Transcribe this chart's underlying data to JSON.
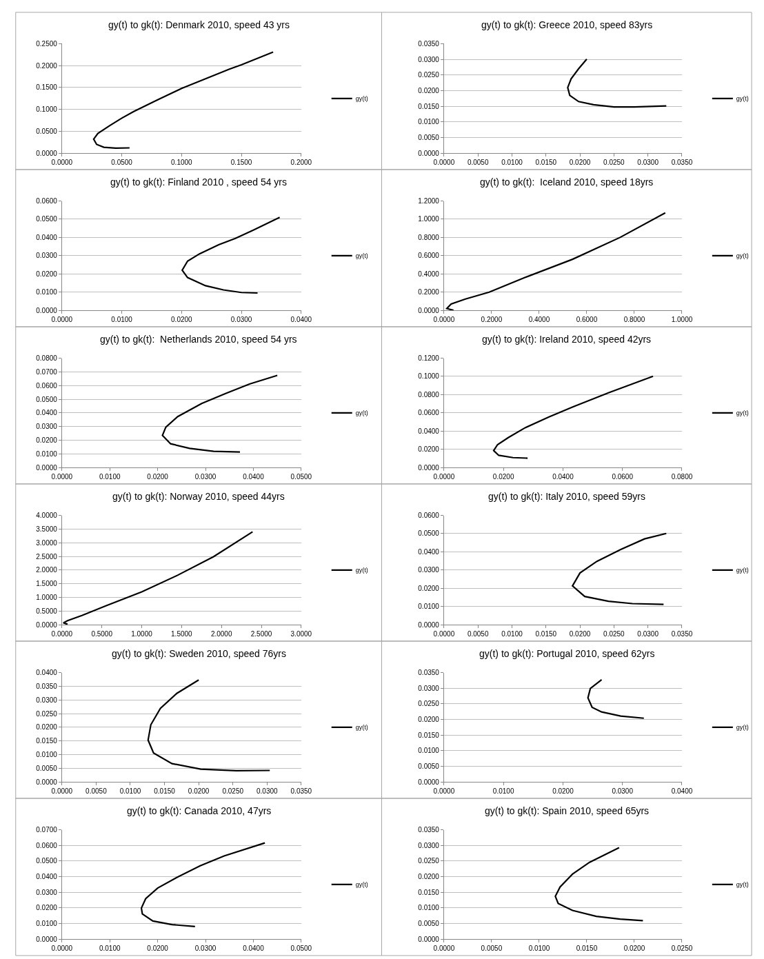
{
  "chart_data": [
    {
      "type": "line",
      "title": "gy(t) to gk(t): Denmark 2010, speed 43 yrs",
      "grid": "y",
      "legend": "right",
      "x": [
        0.0565,
        0.045,
        0.035,
        0.029,
        0.0265,
        0.03,
        0.04,
        0.05,
        0.06,
        0.08,
        0.1,
        0.12,
        0.14,
        0.15,
        0.1765
      ],
      "series": [
        {
          "name": "gy(t)",
          "color": "#000000",
          "values": [
            0.012,
            0.0115,
            0.0135,
            0.02,
            0.032,
            0.045,
            0.063,
            0.08,
            0.095,
            0.122,
            0.148,
            0.17,
            0.192,
            0.202,
            0.231
          ]
        }
      ],
      "xlim": [
        0,
        0.2
      ],
      "xticks": [
        {
          "value": 0,
          "label": "0.0000"
        },
        {
          "value": 0.05,
          "label": "0.0500"
        },
        {
          "value": 0.1,
          "label": "0.1000"
        },
        {
          "value": 0.15,
          "label": "0.1500"
        },
        {
          "value": 0.2,
          "label": "0.2000"
        }
      ],
      "ylim": [
        0,
        0.25
      ],
      "yticks": [
        {
          "value": 0,
          "label": "0.0000"
        },
        {
          "value": 0.05,
          "label": "0.0500"
        },
        {
          "value": 0.1,
          "label": "0.1000"
        },
        {
          "value": 0.15,
          "label": "0.1500"
        },
        {
          "value": 0.2,
          "label": "0.2000"
        },
        {
          "value": 0.25,
          "label": "0.2500"
        }
      ]
    },
    {
      "type": "line",
      "title": "gy(t) to gk(t): Greece 2010, speed 83yrs",
      "grid": "y",
      "legend": "right",
      "x": [
        0.0327,
        0.028,
        0.025,
        0.022,
        0.0198,
        0.0185,
        0.0182,
        0.0187,
        0.0198,
        0.021
      ],
      "series": [
        {
          "name": "gy(t)",
          "color": "#000000",
          "values": [
            0.0151,
            0.0148,
            0.0148,
            0.0155,
            0.0165,
            0.0185,
            0.021,
            0.0238,
            0.027,
            0.0301
          ]
        }
      ],
      "xlim": [
        0,
        0.035
      ],
      "xticks": [
        {
          "value": 0,
          "label": "0.0000"
        },
        {
          "value": 0.005,
          "label": "0.0050"
        },
        {
          "value": 0.01,
          "label": "0.0100"
        },
        {
          "value": 0.015,
          "label": "0.0150"
        },
        {
          "value": 0.02,
          "label": "0.0200"
        },
        {
          "value": 0.025,
          "label": "0.0250"
        },
        {
          "value": 0.03,
          "label": "0.0300"
        },
        {
          "value": 0.035,
          "label": "0.0350"
        }
      ],
      "ylim": [
        0,
        0.035
      ],
      "yticks": [
        {
          "value": 0,
          "label": "0.0000"
        },
        {
          "value": 0.005,
          "label": "0.0050"
        },
        {
          "value": 0.01,
          "label": "0.0100"
        },
        {
          "value": 0.015,
          "label": "0.0150"
        },
        {
          "value": 0.02,
          "label": "0.0200"
        },
        {
          "value": 0.025,
          "label": "0.0250"
        },
        {
          "value": 0.03,
          "label": "0.0300"
        },
        {
          "value": 0.035,
          "label": "0.0350"
        }
      ]
    },
    {
      "type": "line",
      "title": "gy(t) to gk(t): Finland 2010 , speed 54 yrs",
      "grid": "y",
      "legend": "right",
      "x": [
        0.0327,
        0.03,
        0.027,
        0.024,
        0.021,
        0.0201,
        0.021,
        0.023,
        0.0262,
        0.029,
        0.032,
        0.0364
      ],
      "series": [
        {
          "name": "gy(t)",
          "color": "#000000",
          "values": [
            0.0095,
            0.0098,
            0.0112,
            0.0135,
            0.018,
            0.022,
            0.027,
            0.031,
            0.036,
            0.0395,
            0.044,
            0.051
          ]
        }
      ],
      "xlim": [
        0,
        0.04
      ],
      "xticks": [
        {
          "value": 0,
          "label": "0.0000"
        },
        {
          "value": 0.01,
          "label": "0.0100"
        },
        {
          "value": 0.02,
          "label": "0.0200"
        },
        {
          "value": 0.03,
          "label": "0.0300"
        },
        {
          "value": 0.04,
          "label": "0.0400"
        }
      ],
      "ylim": [
        0,
        0.06
      ],
      "yticks": [
        {
          "value": 0,
          "label": "0.0000"
        },
        {
          "value": 0.01,
          "label": "0.0100"
        },
        {
          "value": 0.02,
          "label": "0.0200"
        },
        {
          "value": 0.03,
          "label": "0.0300"
        },
        {
          "value": 0.04,
          "label": "0.0400"
        },
        {
          "value": 0.05,
          "label": "0.0500"
        },
        {
          "value": 0.06,
          "label": "0.0600"
        }
      ]
    },
    {
      "type": "line",
      "title": "gy(t) to gk(t):  Iceland 2010, speed 18yrs",
      "grid": "y",
      "legend": "right",
      "x": [
        0.04,
        0.012,
        0.03,
        0.09,
        0.19,
        0.34,
        0.54,
        0.74,
        0.93
      ],
      "series": [
        {
          "name": "gy(t)",
          "color": "#000000",
          "values": [
            0.0,
            0.02,
            0.07,
            0.124,
            0.2,
            0.36,
            0.56,
            0.8,
            1.07
          ]
        }
      ],
      "xlim": [
        0,
        1
      ],
      "xticks": [
        {
          "value": 0,
          "label": "0.0000"
        },
        {
          "value": 0.2,
          "label": "0.2000"
        },
        {
          "value": 0.4,
          "label": "0.4000"
        },
        {
          "value": 0.6,
          "label": "0.6000"
        },
        {
          "value": 0.8,
          "label": "0.8000"
        },
        {
          "value": 1,
          "label": "1.0000"
        }
      ],
      "ylim": [
        0,
        1.2
      ],
      "yticks": [
        {
          "value": 0,
          "label": "0.0000"
        },
        {
          "value": 0.2,
          "label": "0.2000"
        },
        {
          "value": 0.4,
          "label": "0.4000"
        },
        {
          "value": 0.6,
          "label": "0.6000"
        },
        {
          "value": 0.8,
          "label": "0.8000"
        },
        {
          "value": 1,
          "label": "1.0000"
        },
        {
          "value": 1.2,
          "label": "1.2000"
        }
      ]
    },
    {
      "type": "line",
      "title": "gy(t) to gk(t):  Netherlands 2010, speed 54 yrs",
      "grid": "y",
      "legend": "right",
      "x": [
        0.0372,
        0.0317,
        0.0267,
        0.0227,
        0.021,
        0.0217,
        0.0242,
        0.0292,
        0.0342,
        0.0392,
        0.045
      ],
      "series": [
        {
          "name": "gy(t)",
          "color": "#000000",
          "values": [
            0.0114,
            0.0119,
            0.014,
            0.0174,
            0.0235,
            0.0295,
            0.0373,
            0.0468,
            0.0542,
            0.0611,
            0.0674
          ]
        }
      ],
      "xlim": [
        0,
        0.05
      ],
      "xticks": [
        {
          "value": 0,
          "label": "0.0000"
        },
        {
          "value": 0.01,
          "label": "0.0100"
        },
        {
          "value": 0.02,
          "label": "0.0200"
        },
        {
          "value": 0.03,
          "label": "0.0300"
        },
        {
          "value": 0.04,
          "label": "0.0400"
        },
        {
          "value": 0.05,
          "label": "0.0500"
        }
      ],
      "ylim": [
        0,
        0.08
      ],
      "yticks": [
        {
          "value": 0,
          "label": "0.0000"
        },
        {
          "value": 0.01,
          "label": "0.0100"
        },
        {
          "value": 0.02,
          "label": "0.0200"
        },
        {
          "value": 0.03,
          "label": "0.0300"
        },
        {
          "value": 0.04,
          "label": "0.0400"
        },
        {
          "value": 0.05,
          "label": "0.0500"
        },
        {
          "value": 0.06,
          "label": "0.0600"
        },
        {
          "value": 0.07,
          "label": "0.0700"
        },
        {
          "value": 0.08,
          "label": "0.0800"
        }
      ]
    },
    {
      "type": "line",
      "title": "gy(t) to gk(t): Ireland 2010, speed 42yrs",
      "grid": "y",
      "legend": "right",
      "x": [
        0.0281,
        0.0232,
        0.0184,
        0.0167,
        0.018,
        0.0216,
        0.0273,
        0.0353,
        0.0433,
        0.0553,
        0.0703
      ],
      "series": [
        {
          "name": "gy(t)",
          "color": "#000000",
          "values": [
            0.0103,
            0.0109,
            0.0134,
            0.0186,
            0.0251,
            0.0328,
            0.0437,
            0.0556,
            0.0665,
            0.082,
            0.1001
          ]
        }
      ],
      "xlim": [
        0,
        0.08
      ],
      "xticks": [
        {
          "value": 0,
          "label": "0.0000"
        },
        {
          "value": 0.02,
          "label": "0.0200"
        },
        {
          "value": 0.04,
          "label": "0.0400"
        },
        {
          "value": 0.06,
          "label": "0.0600"
        },
        {
          "value": 0.08,
          "label": "0.0800"
        }
      ],
      "ylim": [
        0,
        0.12
      ],
      "yticks": [
        {
          "value": 0,
          "label": "0.0000"
        },
        {
          "value": 0.02,
          "label": "0.0200"
        },
        {
          "value": 0.04,
          "label": "0.0400"
        },
        {
          "value": 0.06,
          "label": "0.0600"
        },
        {
          "value": 0.08,
          "label": "0.0800"
        },
        {
          "value": 0.1,
          "label": "0.1000"
        },
        {
          "value": 0.12,
          "label": "0.1200"
        }
      ]
    },
    {
      "type": "line",
      "title": "gy(t) to gk(t): Norway 2010, speed 44yrs",
      "grid": "y",
      "legend": "right",
      "x": [
        0.07,
        0.018,
        0.07,
        0.25,
        0.55,
        1.0,
        1.45,
        1.9,
        2.39
      ],
      "series": [
        {
          "name": "gy(t)",
          "color": "#000000",
          "values": [
            0.02,
            0.07,
            0.15,
            0.34,
            0.69,
            1.2,
            1.81,
            2.49,
            3.4
          ]
        }
      ],
      "xlim": [
        0,
        3
      ],
      "xticks": [
        {
          "value": 0,
          "label": "0.0000"
        },
        {
          "value": 0.5,
          "label": "0.5000"
        },
        {
          "value": 1,
          "label": "1.0000"
        },
        {
          "value": 1.5,
          "label": "1.5000"
        },
        {
          "value": 2,
          "label": "2.0000"
        },
        {
          "value": 2.5,
          "label": "2.5000"
        },
        {
          "value": 3,
          "label": "3.0000"
        }
      ],
      "ylim": [
        0,
        4
      ],
      "yticks": [
        {
          "value": 0,
          "label": "0.0000"
        },
        {
          "value": 0.5,
          "label": "0.5000"
        },
        {
          "value": 1,
          "label": "1.0000"
        },
        {
          "value": 1.5,
          "label": "1.5000"
        },
        {
          "value": 2,
          "label": "2.0000"
        },
        {
          "value": 2.5,
          "label": "2.5000"
        },
        {
          "value": 3,
          "label": "3.0000"
        },
        {
          "value": 3.5,
          "label": "3.5000"
        },
        {
          "value": 4,
          "label": "4.0000"
        }
      ]
    },
    {
      "type": "line",
      "title": "gy(t) to gk(t): Italy 2010, speed 59yrs",
      "grid": "y",
      "legend": "right",
      "x": [
        0.0323,
        0.0277,
        0.0242,
        0.0207,
        0.0189,
        0.02,
        0.0225,
        0.026,
        0.0295,
        0.0327
      ],
      "series": [
        {
          "name": "gy(t)",
          "color": "#000000",
          "values": [
            0.0112,
            0.0116,
            0.0129,
            0.0155,
            0.0213,
            0.0284,
            0.0348,
            0.0413,
            0.0471,
            0.0501
          ]
        }
      ],
      "xlim": [
        0,
        0.035
      ],
      "xticks": [
        {
          "value": 0,
          "label": "0.0000"
        },
        {
          "value": 0.005,
          "label": "0.0050"
        },
        {
          "value": 0.01,
          "label": "0.0100"
        },
        {
          "value": 0.015,
          "label": "0.0150"
        },
        {
          "value": 0.02,
          "label": "0.0200"
        },
        {
          "value": 0.025,
          "label": "0.0250"
        },
        {
          "value": 0.03,
          "label": "0.0300"
        },
        {
          "value": 0.035,
          "label": "0.0350"
        }
      ],
      "ylim": [
        0,
        0.06
      ],
      "yticks": [
        {
          "value": 0,
          "label": "0.0000"
        },
        {
          "value": 0.01,
          "label": "0.0100"
        },
        {
          "value": 0.02,
          "label": "0.0200"
        },
        {
          "value": 0.03,
          "label": "0.0300"
        },
        {
          "value": 0.04,
          "label": "0.0400"
        },
        {
          "value": 0.05,
          "label": "0.0500"
        },
        {
          "value": 0.06,
          "label": "0.0600"
        }
      ]
    },
    {
      "type": "line",
      "title": "gy(t) to gk(t): Sweden 2010, speed 76yrs",
      "grid": "y",
      "legend": "right",
      "x": [
        0.0304,
        0.0255,
        0.0203,
        0.0161,
        0.0134,
        0.0126,
        0.013,
        0.0144,
        0.0168,
        0.02
      ],
      "series": [
        {
          "name": "gy(t)",
          "color": "#000000",
          "values": [
            0.0042,
            0.0041,
            0.0047,
            0.0067,
            0.0106,
            0.0153,
            0.0209,
            0.0269,
            0.0324,
            0.0373
          ]
        }
      ],
      "xlim": [
        0,
        0.035
      ],
      "xticks": [
        {
          "value": 0,
          "label": "0.0000"
        },
        {
          "value": 0.005,
          "label": "0.0050"
        },
        {
          "value": 0.01,
          "label": "0.0100"
        },
        {
          "value": 0.015,
          "label": "0.0150"
        },
        {
          "value": 0.02,
          "label": "0.0200"
        },
        {
          "value": 0.025,
          "label": "0.0250"
        },
        {
          "value": 0.03,
          "label": "0.0300"
        },
        {
          "value": 0.035,
          "label": "0.0350"
        }
      ],
      "ylim": [
        0,
        0.04
      ],
      "yticks": [
        {
          "value": 0,
          "label": "0.0000"
        },
        {
          "value": 0.005,
          "label": "0.0050"
        },
        {
          "value": 0.01,
          "label": "0.0100"
        },
        {
          "value": 0.015,
          "label": "0.0150"
        },
        {
          "value": 0.02,
          "label": "0.0200"
        },
        {
          "value": 0.025,
          "label": "0.0250"
        },
        {
          "value": 0.03,
          "label": "0.0300"
        },
        {
          "value": 0.035,
          "label": "0.0350"
        },
        {
          "value": 0.04,
          "label": "0.0400"
        }
      ]
    },
    {
      "type": "line",
      "title": "gy(t) to gk(t): Portugal 2010, speed 62yrs",
      "grid": "y",
      "legend": "right",
      "x": [
        0.0336,
        0.0297,
        0.0265,
        0.0249,
        0.0242,
        0.0246,
        0.0265
      ],
      "series": [
        {
          "name": "gy(t)",
          "color": "#000000",
          "values": [
            0.0204,
            0.0211,
            0.0224,
            0.0239,
            0.0269,
            0.0299,
            0.0327
          ]
        }
      ],
      "xlim": [
        0,
        0.04
      ],
      "xticks": [
        {
          "value": 0,
          "label": "0.0000"
        },
        {
          "value": 0.01,
          "label": "0.0100"
        },
        {
          "value": 0.02,
          "label": "0.0200"
        },
        {
          "value": 0.03,
          "label": "0.0300"
        },
        {
          "value": 0.04,
          "label": "0.0400"
        }
      ],
      "ylim": [
        0,
        0.035
      ],
      "yticks": [
        {
          "value": 0,
          "label": "0.0000"
        },
        {
          "value": 0.005,
          "label": "0.0050"
        },
        {
          "value": 0.01,
          "label": "0.0100"
        },
        {
          "value": 0.015,
          "label": "0.0150"
        },
        {
          "value": 0.02,
          "label": "0.0200"
        },
        {
          "value": 0.025,
          "label": "0.0250"
        },
        {
          "value": 0.03,
          "label": "0.0300"
        },
        {
          "value": 0.035,
          "label": "0.0350"
        }
      ]
    },
    {
      "type": "line",
      "title": "gy(t) to gk(t): Canada 2010, 47yrs",
      "grid": "y",
      "legend": "right",
      "x": [
        0.0278,
        0.023,
        0.019,
        0.0168,
        0.0166,
        0.0175,
        0.02,
        0.024,
        0.0289,
        0.0339,
        0.0424
      ],
      "series": [
        {
          "name": "gy(t)",
          "color": "#000000",
          "values": [
            0.0081,
            0.0093,
            0.0116,
            0.0161,
            0.0199,
            0.0259,
            0.0327,
            0.0395,
            0.047,
            0.0533,
            0.0616
          ]
        }
      ],
      "xlim": [
        0,
        0.05
      ],
      "xticks": [
        {
          "value": 0,
          "label": "0.0000"
        },
        {
          "value": 0.01,
          "label": "0.0100"
        },
        {
          "value": 0.02,
          "label": "0.0200"
        },
        {
          "value": 0.03,
          "label": "0.0300"
        },
        {
          "value": 0.04,
          "label": "0.0400"
        },
        {
          "value": 0.05,
          "label": "0.0500"
        }
      ],
      "ylim": [
        0,
        0.07
      ],
      "yticks": [
        {
          "value": 0,
          "label": "0.0000"
        },
        {
          "value": 0.01,
          "label": "0.0100"
        },
        {
          "value": 0.02,
          "label": "0.0200"
        },
        {
          "value": 0.03,
          "label": "0.0300"
        },
        {
          "value": 0.04,
          "label": "0.0400"
        },
        {
          "value": 0.05,
          "label": "0.0500"
        },
        {
          "value": 0.06,
          "label": "0.0600"
        },
        {
          "value": 0.07,
          "label": "0.0700"
        }
      ]
    },
    {
      "type": "line",
      "title": "gy(t) to gk(t): Spain 2010, speed 65yrs",
      "grid": "y",
      "legend": "right",
      "x": [
        0.0209,
        0.0185,
        0.016,
        0.0135,
        0.012,
        0.0117,
        0.0122,
        0.0135,
        0.0153,
        0.0184
      ],
      "series": [
        {
          "name": "gy(t)",
          "color": "#000000",
          "values": [
            0.0059,
            0.0064,
            0.0073,
            0.0092,
            0.0114,
            0.0137,
            0.0167,
            0.0208,
            0.0246,
            0.0293
          ]
        }
      ],
      "xlim": [
        0,
        0.025
      ],
      "xticks": [
        {
          "value": 0,
          "label": "0.0000"
        },
        {
          "value": 0.005,
          "label": "0.0050"
        },
        {
          "value": 0.01,
          "label": "0.0100"
        },
        {
          "value": 0.015,
          "label": "0.0150"
        },
        {
          "value": 0.02,
          "label": "0.0200"
        },
        {
          "value": 0.025,
          "label": "0.0250"
        }
      ],
      "ylim": [
        0,
        0.035
      ],
      "yticks": [
        {
          "value": 0,
          "label": "0.0000"
        },
        {
          "value": 0.005,
          "label": "0.0050"
        },
        {
          "value": 0.01,
          "label": "0.0100"
        },
        {
          "value": 0.015,
          "label": "0.0150"
        },
        {
          "value": 0.02,
          "label": "0.0200"
        },
        {
          "value": 0.025,
          "label": "0.0250"
        },
        {
          "value": 0.03,
          "label": "0.0300"
        },
        {
          "value": 0.035,
          "label": "0.0350"
        }
      ]
    }
  ]
}
